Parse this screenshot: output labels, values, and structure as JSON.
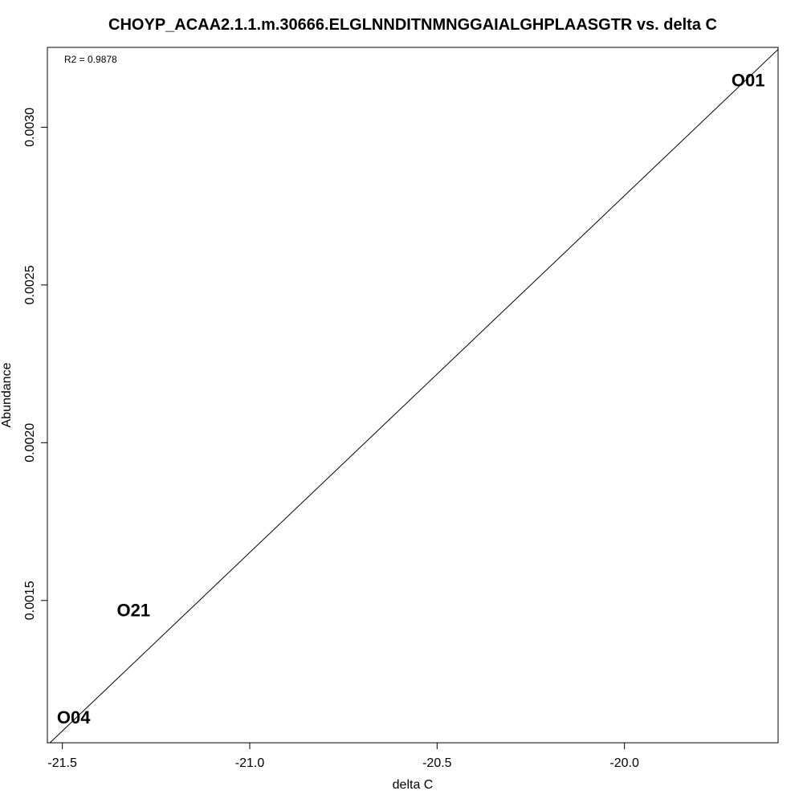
{
  "chart_data": {
    "type": "scatter",
    "title": "CHOYP_ACAA2.1.1.m.30666.ELGLNNDITNMNGGAIALGHPLAASGTR vs. delta C",
    "xlabel": "delta C",
    "ylabel": "Abundance",
    "annotation": "R2 = 0.9878",
    "xlim": [
      -21.54,
      -19.59
    ],
    "ylim": [
      0.001049,
      0.003253
    ],
    "x_ticks": [
      {
        "value": -21.5,
        "label": "-21.5"
      },
      {
        "value": -21.0,
        "label": "-21.0"
      },
      {
        "value": -20.5,
        "label": "-20.5"
      },
      {
        "value": -20.0,
        "label": "-20.0"
      }
    ],
    "y_ticks": [
      {
        "value": 0.0015,
        "label": "0.0015"
      },
      {
        "value": 0.002,
        "label": "0.0020"
      },
      {
        "value": 0.0025,
        "label": "0.0025"
      },
      {
        "value": 0.003,
        "label": "0.0030"
      }
    ],
    "points": [
      {
        "label": "O01",
        "x": -19.67,
        "y": 0.00315
      },
      {
        "label": "O21",
        "x": -21.31,
        "y": 0.00147
      },
      {
        "label": "O04",
        "x": -21.47,
        "y": 0.00113
      }
    ],
    "fit_line": {
      "slope": 0.001131,
      "intercept": 0.025403
    },
    "grid": false,
    "legend": "none"
  }
}
